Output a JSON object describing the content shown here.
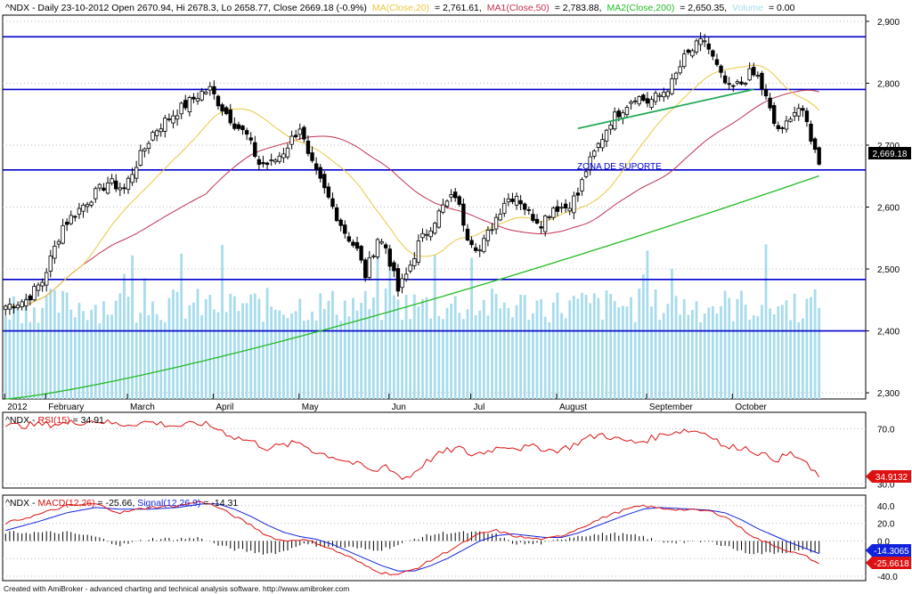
{
  "header": {
    "main": {
      "prefix": "^NDX - Daily 23-10-2012 Open 2670.94, Hi 2678.3, Lo 2658.77, Close 2669.18 (-0.9%)",
      "ma20_label": "MA(Close,20)",
      "ma20_value": "= 2,761.61,",
      "ma50_label": "MA1(Close,50)",
      "ma50_value": "= 2,783.88,",
      "ma200_label": "MA2(Close,200)",
      "ma200_value": "= 2,650.35,",
      "volume_label": "Volume",
      "volume_value": "= 0.00"
    },
    "rsi": {
      "prefix": "^NDX - ",
      "label": "RSI(15)",
      "value": " = 34.91"
    },
    "macd": {
      "prefix": "^NDX - ",
      "label": "MACD(12,26)",
      "value": " = -25.66, ",
      "signal_label": "Signal(12,26,9)",
      "signal_value": " = -14.31"
    }
  },
  "annotation": "ZONA DE SUPORTE",
  "price_tag": "2,669.18",
  "rsi_tag": "34.9132",
  "macd_tag": "-25.6618",
  "signal_tag": "-14.3065",
  "footer": "Created with AmiBroker - advanced charting and technical analysis software. http://www.amibroker.com",
  "colors": {
    "support_line": "#0000cc",
    "ma20": "#e8c840",
    "ma50": "#c03050",
    "ma200": "#22bb22",
    "volume": "#a8dcec",
    "rsi": "#dd1111",
    "macd": "#dd1111",
    "signal": "#1122dd",
    "trendline": "#22aa55"
  },
  "chart_data": [
    {
      "type": "candlestick",
      "title": "^NDX Daily",
      "y_ticks": [
        2300,
        2400,
        2500,
        2600,
        2700,
        2800,
        2900
      ],
      "y_tick_labels": [
        "2,300",
        "2,400",
        "2,500",
        "2,600",
        "2,700",
        "2,800",
        "2,900"
      ],
      "ylim": [
        2290,
        2910
      ],
      "x_labels": [
        "2012",
        "February",
        "March",
        "April",
        "May",
        "Jun",
        "Jul",
        "August",
        "September",
        "October"
      ],
      "x_label_index": [
        0,
        10,
        30,
        51,
        72,
        94,
        114,
        135,
        157,
        178
      ],
      "support_levels": [
        2875,
        2790,
        2660,
        2483,
        2400
      ],
      "trendline": {
        "from_index": 140,
        "to_index": 183,
        "from_value": 2727,
        "to_value": 2790
      },
      "close_keypoints": [
        [
          0,
          2440
        ],
        [
          5,
          2450
        ],
        [
          9,
          2480
        ],
        [
          14,
          2570
        ],
        [
          20,
          2610
        ],
        [
          25,
          2640
        ],
        [
          29,
          2630
        ],
        [
          32,
          2670
        ],
        [
          36,
          2720
        ],
        [
          40,
          2745
        ],
        [
          44,
          2765
        ],
        [
          48,
          2785
        ],
        [
          50,
          2790
        ],
        [
          53,
          2760
        ],
        [
          56,
          2735
        ],
        [
          59,
          2715
        ],
        [
          62,
          2670
        ],
        [
          65,
          2670
        ],
        [
          68,
          2690
        ],
        [
          70,
          2710
        ],
        [
          72,
          2730
        ],
        [
          74,
          2680
        ],
        [
          77,
          2640
        ],
        [
          80,
          2600
        ],
        [
          83,
          2560
        ],
        [
          86,
          2530
        ],
        [
          88,
          2490
        ],
        [
          91,
          2550
        ],
        [
          93,
          2535
        ],
        [
          96,
          2465
        ],
        [
          98,
          2490
        ],
        [
          101,
          2540
        ],
        [
          104,
          2570
        ],
        [
          107,
          2600
        ],
        [
          110,
          2620
        ],
        [
          113,
          2555
        ],
        [
          116,
          2530
        ],
        [
          119,
          2570
        ],
        [
          122,
          2610
        ],
        [
          125,
          2620
        ],
        [
          128,
          2590
        ],
        [
          131,
          2575
        ],
        [
          134,
          2600
        ],
        [
          137,
          2600
        ],
        [
          140,
          2620
        ],
        [
          142,
          2660
        ],
        [
          145,
          2700
        ],
        [
          148,
          2740
        ],
        [
          151,
          2760
        ],
        [
          154,
          2780
        ],
        [
          157,
          2770
        ],
        [
          160,
          2780
        ],
        [
          163,
          2800
        ],
        [
          166,
          2840
        ],
        [
          169,
          2860
        ],
        [
          171,
          2870
        ],
        [
          173,
          2840
        ],
        [
          175,
          2810
        ],
        [
          177,
          2790
        ],
        [
          180,
          2800
        ],
        [
          182,
          2815
        ],
        [
          184,
          2810
        ],
        [
          186,
          2775
        ],
        [
          188,
          2735
        ],
        [
          190,
          2720
        ],
        [
          192,
          2750
        ],
        [
          194,
          2760
        ],
        [
          196,
          2735
        ],
        [
          198,
          2690
        ],
        [
          199,
          2669
        ]
      ],
      "last_close": 2669.18,
      "ma20_last": 2761.61,
      "ma50_last": 2783.88,
      "ma200_last": 2650.35
    },
    {
      "type": "line",
      "title": "RSI(15)",
      "y_ticks": [
        30,
        70
      ],
      "y_tick_labels": [
        "30.0",
        "70.0"
      ],
      "ylim": [
        27,
        82
      ],
      "series": [
        {
          "name": "RSI(15)",
          "keypoints": [
            [
              0,
              72
            ],
            [
              8,
              73
            ],
            [
              15,
              74
            ],
            [
              22,
              76
            ],
            [
              28,
              73
            ],
            [
              35,
              75
            ],
            [
              42,
              72
            ],
            [
              48,
              74
            ],
            [
              52,
              70
            ],
            [
              56,
              64
            ],
            [
              60,
              61
            ],
            [
              64,
              56
            ],
            [
              68,
              58
            ],
            [
              72,
              60
            ],
            [
              76,
              53
            ],
            [
              80,
              50
            ],
            [
              84,
              46
            ],
            [
              88,
              42
            ],
            [
              90,
              38
            ],
            [
              93,
              44
            ],
            [
              97,
              34
            ],
            [
              99,
              36
            ],
            [
              102,
              44
            ],
            [
              105,
              50
            ],
            [
              108,
              54
            ],
            [
              111,
              56
            ],
            [
              114,
              51
            ],
            [
              118,
              54
            ],
            [
              122,
              58
            ],
            [
              126,
              56
            ],
            [
              130,
              57
            ],
            [
              134,
              54
            ],
            [
              138,
              57
            ],
            [
              142,
              63
            ],
            [
              146,
              66
            ],
            [
              150,
              62
            ],
            [
              154,
              60
            ],
            [
              158,
              63
            ],
            [
              162,
              67
            ],
            [
              166,
              69
            ],
            [
              170,
              68
            ],
            [
              173,
              65
            ],
            [
              176,
              56
            ],
            [
              180,
              57
            ],
            [
              183,
              54
            ],
            [
              186,
              50
            ],
            [
              189,
              48
            ],
            [
              192,
              52
            ],
            [
              195,
              47
            ],
            [
              197,
              40
            ],
            [
              199,
              36
            ]
          ],
          "last": 34.91
        }
      ]
    },
    {
      "type": "line",
      "title": "MACD(12,26)",
      "y_ticks": [
        -40,
        -20,
        0,
        20,
        40
      ],
      "y_tick_labels": [
        "-40.0",
        "-20.0",
        "0.0",
        "20.0",
        "40.0"
      ],
      "ylim": [
        -45,
        52
      ],
      "series": [
        {
          "name": "MACD(12,26)",
          "keypoints": [
            [
              0,
              20
            ],
            [
              8,
              30
            ],
            [
              15,
              40
            ],
            [
              22,
              42
            ],
            [
              28,
              32
            ],
            [
              35,
              38
            ],
            [
              42,
              40
            ],
            [
              48,
              45
            ],
            [
              52,
              38
            ],
            [
              56,
              28
            ],
            [
              60,
              18
            ],
            [
              64,
              6
            ],
            [
              68,
              0
            ],
            [
              72,
              2
            ],
            [
              76,
              -2
            ],
            [
              80,
              -10
            ],
            [
              84,
              -18
            ],
            [
              88,
              -28
            ],
            [
              92,
              -36
            ],
            [
              96,
              -38
            ],
            [
              100,
              -32
            ],
            [
              104,
              -22
            ],
            [
              108,
              -12
            ],
            [
              112,
              -2
            ],
            [
              116,
              8
            ],
            [
              120,
              12
            ],
            [
              124,
              6
            ],
            [
              128,
              3
            ],
            [
              132,
              2
            ],
            [
              136,
              6
            ],
            [
              140,
              14
            ],
            [
              144,
              22
            ],
            [
              148,
              30
            ],
            [
              152,
              36
            ],
            [
              156,
              40
            ],
            [
              160,
              37
            ],
            [
              164,
              36
            ],
            [
              168,
              35
            ],
            [
              172,
              34
            ],
            [
              176,
              28
            ],
            [
              180,
              14
            ],
            [
              184,
              2
            ],
            [
              188,
              -5
            ],
            [
              192,
              -12
            ],
            [
              196,
              -18
            ],
            [
              199,
              -25.66
            ]
          ],
          "last": -25.66
        },
        {
          "name": "Signal(12,26,9)",
          "keypoints": [
            [
              0,
              12
            ],
            [
              8,
              22
            ],
            [
              15,
              32
            ],
            [
              22,
              38
            ],
            [
              28,
              36
            ],
            [
              35,
              36
            ],
            [
              42,
              38
            ],
            [
              48,
              42
            ],
            [
              52,
              42
            ],
            [
              56,
              36
            ],
            [
              60,
              28
            ],
            [
              64,
              18
            ],
            [
              68,
              10
            ],
            [
              72,
              5
            ],
            [
              76,
              2
            ],
            [
              80,
              -4
            ],
            [
              84,
              -12
            ],
            [
              88,
              -20
            ],
            [
              92,
              -28
            ],
            [
              96,
              -34
            ],
            [
              100,
              -34
            ],
            [
              104,
              -28
            ],
            [
              108,
              -20
            ],
            [
              112,
              -10
            ],
            [
              116,
              0
            ],
            [
              120,
              6
            ],
            [
              124,
              8
            ],
            [
              128,
              6
            ],
            [
              132,
              4
            ],
            [
              136,
              4
            ],
            [
              140,
              9
            ],
            [
              144,
              16
            ],
            [
              148,
              23
            ],
            [
              152,
              30
            ],
            [
              156,
              36
            ],
            [
              160,
              38
            ],
            [
              164,
              37
            ],
            [
              168,
              36
            ],
            [
              172,
              35
            ],
            [
              176,
              32
            ],
            [
              180,
              24
            ],
            [
              184,
              14
            ],
            [
              188,
              6
            ],
            [
              192,
              -2
            ],
            [
              196,
              -9
            ],
            [
              199,
              -14.31
            ]
          ],
          "last": -14.31
        }
      ]
    }
  ]
}
